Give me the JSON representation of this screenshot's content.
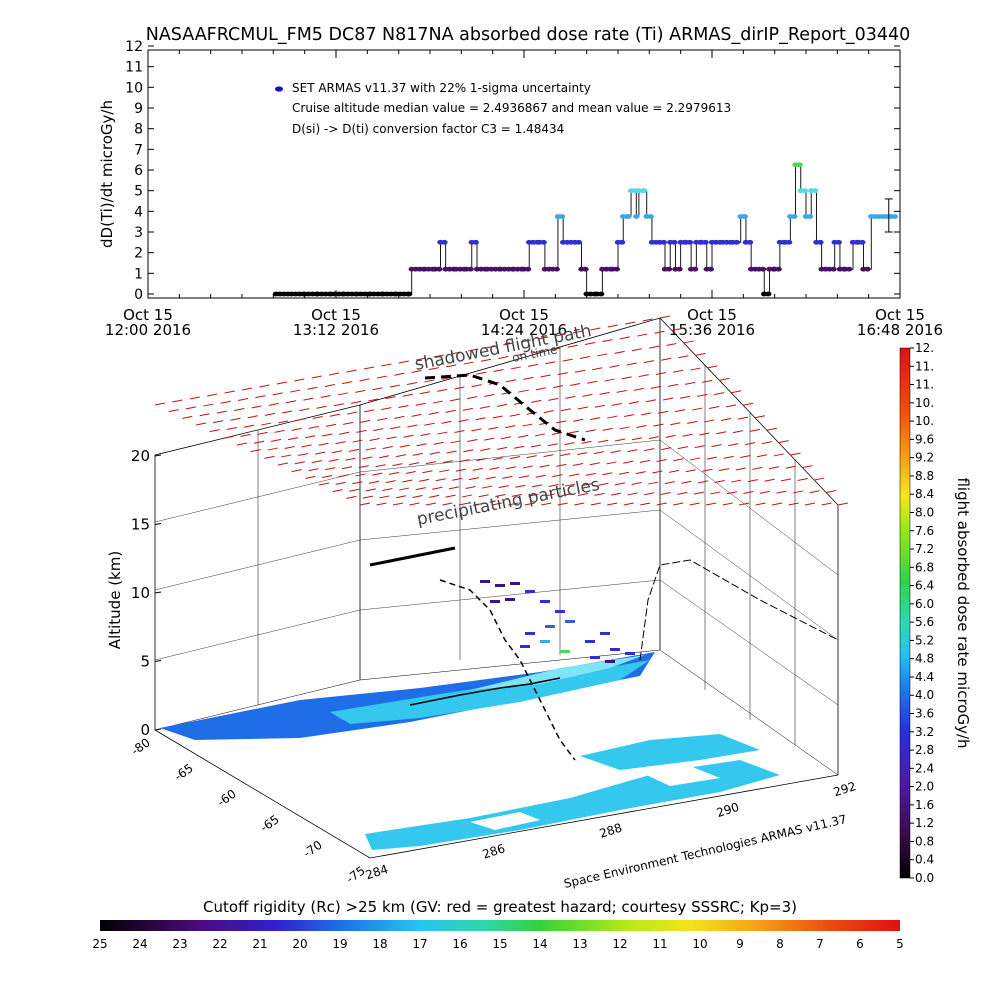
{
  "title": "NASAAFRCMUL_FM5 DC87 N817NA absorbed dose rate (Ti) ARMAS_dirIP_Report_03440",
  "chart_data": [
    {
      "type": "scatter",
      "ylabel": "dD(Ti)/dt microGy/h",
      "ylim": [
        0,
        12
      ],
      "yticks": [
        "0",
        "1",
        "2",
        "3",
        "4",
        "5",
        "6",
        "7",
        "8",
        "9",
        "10",
        "11",
        "12"
      ],
      "xlim_minutes": [
        0,
        288
      ],
      "xticks": [
        {
          "top": "Oct 15",
          "bottom": "12:00 2016",
          "minute": 0
        },
        {
          "top": "Oct 15",
          "bottom": "13:12 2016",
          "minute": 72
        },
        {
          "top": "Oct 15",
          "bottom": "14:24 2016",
          "minute": 144
        },
        {
          "top": "Oct 15",
          "bottom": "15:36 2016",
          "minute": 216
        },
        {
          "top": "Oct 15",
          "bottom": "16:48 2016",
          "minute": 288
        }
      ],
      "annotations": {
        "legend": "SET ARMAS v11.37 with 22% 1-sigma uncertainty",
        "cruise": "Cruise altitude median value = 2.4936867 and mean value = 2.2979613",
        "conversion": "D(si) -> D(ti) conversion factor C3 = 1.48434"
      },
      "series": [
        {
          "points": [
            [
              49,
              0
            ],
            [
              55,
              0
            ],
            [
              60,
              0
            ],
            [
              65,
              0
            ],
            [
              70,
              0
            ],
            [
              75,
              0
            ],
            [
              80,
              0
            ],
            [
              85,
              0
            ],
            [
              90,
              0
            ],
            [
              95,
              0
            ],
            [
              100,
              0
            ],
            [
              101,
              1.2
            ],
            [
              106,
              1.2
            ],
            [
              110,
              1.2
            ],
            [
              112,
              2.5
            ],
            [
              114,
              1.2
            ],
            [
              118,
              1.2
            ],
            [
              122,
              1.2
            ],
            [
              124,
              2.5
            ],
            [
              126,
              1.2
            ],
            [
              130,
              1.2
            ],
            [
              135,
              1.2
            ],
            [
              140,
              1.2
            ],
            [
              144,
              1.2
            ],
            [
              146,
              2.5
            ],
            [
              150,
              2.5
            ],
            [
              152,
              1.2
            ],
            [
              155,
              1.2
            ],
            [
              157,
              3.75
            ],
            [
              159,
              2.5
            ],
            [
              162,
              2.5
            ],
            [
              165,
              2.5
            ],
            [
              166,
              1.2
            ],
            [
              168,
              0
            ],
            [
              172,
              0
            ],
            [
              174,
              1.2
            ],
            [
              178,
              1.2
            ],
            [
              180,
              2.5
            ],
            [
              182,
              3.75
            ],
            [
              184,
              3.75
            ],
            [
              185,
              5
            ],
            [
              187,
              3.75
            ],
            [
              188,
              5
            ],
            [
              190,
              5
            ],
            [
              191,
              3.75
            ],
            [
              193,
              2.5
            ],
            [
              196,
              2.5
            ],
            [
              198,
              1.2
            ],
            [
              200,
              2.5
            ],
            [
              202,
              1.2
            ],
            [
              204,
              2.5
            ],
            [
              206,
              2.5
            ],
            [
              208,
              1.2
            ],
            [
              210,
              2.5
            ],
            [
              212,
              2.5
            ],
            [
              214,
              1.2
            ],
            [
              216,
              2.5
            ],
            [
              220,
              2.5
            ],
            [
              224,
              2.5
            ],
            [
              227,
              3.75
            ],
            [
              229,
              2.5
            ],
            [
              231,
              1.2
            ],
            [
              234,
              1.2
            ],
            [
              236,
              0
            ],
            [
              238,
              1.2
            ],
            [
              240,
              1.2
            ],
            [
              242,
              2.5
            ],
            [
              244,
              2.5
            ],
            [
              246,
              3.75
            ],
            [
              248,
              6.25
            ],
            [
              250,
              5
            ],
            [
              252,
              3.75
            ],
            [
              254,
              5
            ],
            [
              256,
              2.5
            ],
            [
              258,
              1.2
            ],
            [
              261,
              1.2
            ],
            [
              263,
              2.5
            ],
            [
              265,
              1.2
            ],
            [
              267,
              1.2
            ],
            [
              270,
              2.5
            ],
            [
              272,
              2.5
            ],
            [
              274,
              1.2
            ],
            [
              277,
              3.75
            ],
            [
              280,
              3.75
            ],
            [
              283,
              3.75
            ],
            [
              286,
              3.75
            ]
          ]
        }
      ],
      "error_bar": {
        "minute": 286,
        "low": 3.0,
        "high": 4.6
      }
    },
    {
      "type": "scatter",
      "zlabel": "Altitude (km)",
      "zticks": [
        "0",
        "5",
        "10",
        "15",
        "20"
      ],
      "lat_ticks": [
        "-80",
        "-65",
        "-60",
        "-65",
        "-70",
        "-75"
      ],
      "lon_ticks": [
        "284",
        "286",
        "288",
        "290",
        "292"
      ],
      "annotations": {
        "shadow": "shadowed flight path",
        "shadow2": "on time",
        "precip": "precipitating particles",
        "credit": "Space Environment Technologies ARMAS v11.37"
      },
      "colorbar": {
        "label": "flight absorbed dose rate microGy/h",
        "ticks": [
          "0.0",
          "0.4",
          "0.8",
          "1.2",
          "1.6",
          "2.0",
          "2.4",
          "2.8",
          "3.2",
          "3.6",
          "4.0",
          "4.4",
          "4.8",
          "5.2",
          "5.6",
          "6.0",
          "6.4",
          "6.8",
          "7.2",
          "7.6",
          "8.0",
          "8.4",
          "8.8",
          "9.2",
          "9.6",
          "10.",
          "10.",
          "11.",
          "11.",
          "12."
        ]
      },
      "rigidity_bar": {
        "title": "Cutoff rigidity (Rc) >25 km (GV: red = greatest hazard; courtesy SSSRC; Kp=3)",
        "ticks": [
          "25",
          "24",
          "23",
          "22",
          "21",
          "20",
          "19",
          "18",
          "17",
          "16",
          "15",
          "14",
          "13",
          "12",
          "11",
          "10",
          "9",
          "8",
          "7",
          "6",
          "5"
        ]
      }
    }
  ],
  "colors": {
    "dose_low": "#2b0a3d",
    "dose_mid": "#3a3ad8",
    "dose_high": "#59d9e0",
    "dose_peak": "#55d65a",
    "grid_red": "#c81010",
    "ground_blue": "#1f6ee8",
    "ground_cyan": "#34c8ee"
  }
}
